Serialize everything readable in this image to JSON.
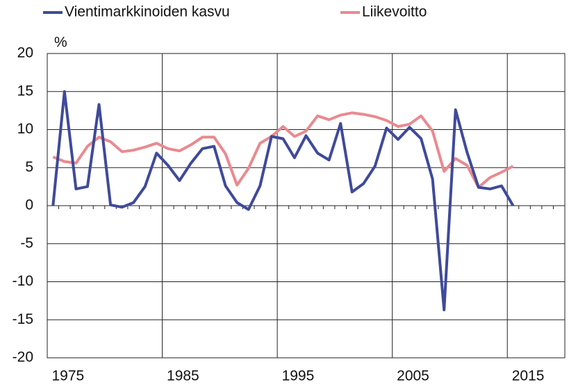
{
  "chart_data": {
    "type": "line",
    "y_unit": "%",
    "x": [
      1974,
      1975,
      1976,
      1977,
      1978,
      1979,
      1980,
      1981,
      1982,
      1983,
      1984,
      1985,
      1986,
      1987,
      1988,
      1989,
      1990,
      1991,
      1992,
      1993,
      1994,
      1995,
      1996,
      1997,
      1998,
      1999,
      2000,
      2001,
      2002,
      2003,
      2004,
      2005,
      2006,
      2007,
      2008,
      2009,
      2010,
      2011,
      2012,
      2013,
      2014
    ],
    "series": [
      {
        "name": "Vientimarkkinoiden kasvu",
        "color": "#3f4a9a",
        "values": [
          0,
          15,
          2.2,
          2.5,
          13.3,
          0.1,
          -0.2,
          0.4,
          2.5,
          6.9,
          5.3,
          3.3,
          5.6,
          7.5,
          7.8,
          2.6,
          0.4,
          -0.5,
          2.6,
          9.1,
          8.8,
          6.3,
          9.2,
          6.9,
          6.0,
          10.8,
          1.8,
          2.9,
          5.2,
          10.2,
          8.7,
          10.3,
          8.8,
          3.5,
          -13.7,
          12.6,
          7.0,
          2.4,
          2.2,
          2.6,
          0
        ]
      },
      {
        "name": "Liikevoitto",
        "color": "#e98a8f",
        "values": [
          6.4,
          5.8,
          5.6,
          7.8,
          9.0,
          8.4,
          7.1,
          7.3,
          7.7,
          8.2,
          7.5,
          7.2,
          8.0,
          9.0,
          9.0,
          6.8,
          2.7,
          4.9,
          8.2,
          9.1,
          10.4,
          9.1,
          9.8,
          11.8,
          11.3,
          11.9,
          12.2,
          12.0,
          11.7,
          11.2,
          10.4,
          10.7,
          11.8,
          9.8,
          4.5,
          6.2,
          5.3,
          2.4,
          3.7,
          4.4,
          5.2
        ]
      }
    ],
    "xlim": [
      1973.5,
      2018.5
    ],
    "xticks": [
      1975,
      1985,
      1995,
      2005,
      2015
    ],
    "ylim": [
      -20,
      20
    ],
    "yticks": [
      -20,
      -15,
      -10,
      -5,
      0,
      5,
      10,
      15,
      20
    ],
    "grid": true
  }
}
